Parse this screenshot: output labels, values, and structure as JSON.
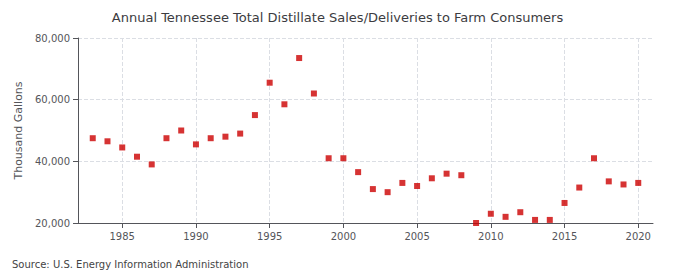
{
  "chart_data": {
    "type": "scatter",
    "title": "Annual Tennessee Total Distillate Sales/Deliveries to Farm Consumers",
    "ylabel": "Thousand Gallons",
    "source": "Source: U.S. Energy Information Administration",
    "color": "#cc0000",
    "marker": "square",
    "x": [
      1983,
      1984,
      1985,
      1986,
      1987,
      1988,
      1989,
      1990,
      1991,
      1992,
      1993,
      1994,
      1995,
      1996,
      1997,
      1998,
      1999,
      2000,
      2001,
      2002,
      2003,
      2004,
      2005,
      2006,
      2007,
      2008,
      2009,
      2010,
      2011,
      2012,
      2013,
      2014,
      2015,
      2016,
      2017,
      2018,
      2019,
      2020
    ],
    "values": [
      47500,
      46500,
      44500,
      41500,
      39000,
      47500,
      50000,
      45500,
      47500,
      48000,
      49000,
      55000,
      65500,
      58500,
      73500,
      62000,
      41000,
      41000,
      36500,
      31000,
      30000,
      33000,
      32000,
      34500,
      36000,
      35500,
      20000,
      23000,
      22000,
      23500,
      21000,
      21000,
      26500,
      31500,
      41000,
      33500,
      32500,
      33000
    ],
    "xlim": [
      1982,
      2021
    ],
    "xticks": [
      1985,
      1990,
      1995,
      2000,
      2005,
      2010,
      2015,
      2020
    ],
    "ylim": [
      20000,
      80000
    ],
    "yticks": [
      {
        "value": 20000,
        "label": "20,000"
      },
      {
        "value": 40000,
        "label": "40,000"
      },
      {
        "value": 60000,
        "label": "60,000"
      },
      {
        "value": 80000,
        "label": "80,000"
      }
    ],
    "grid": true
  }
}
